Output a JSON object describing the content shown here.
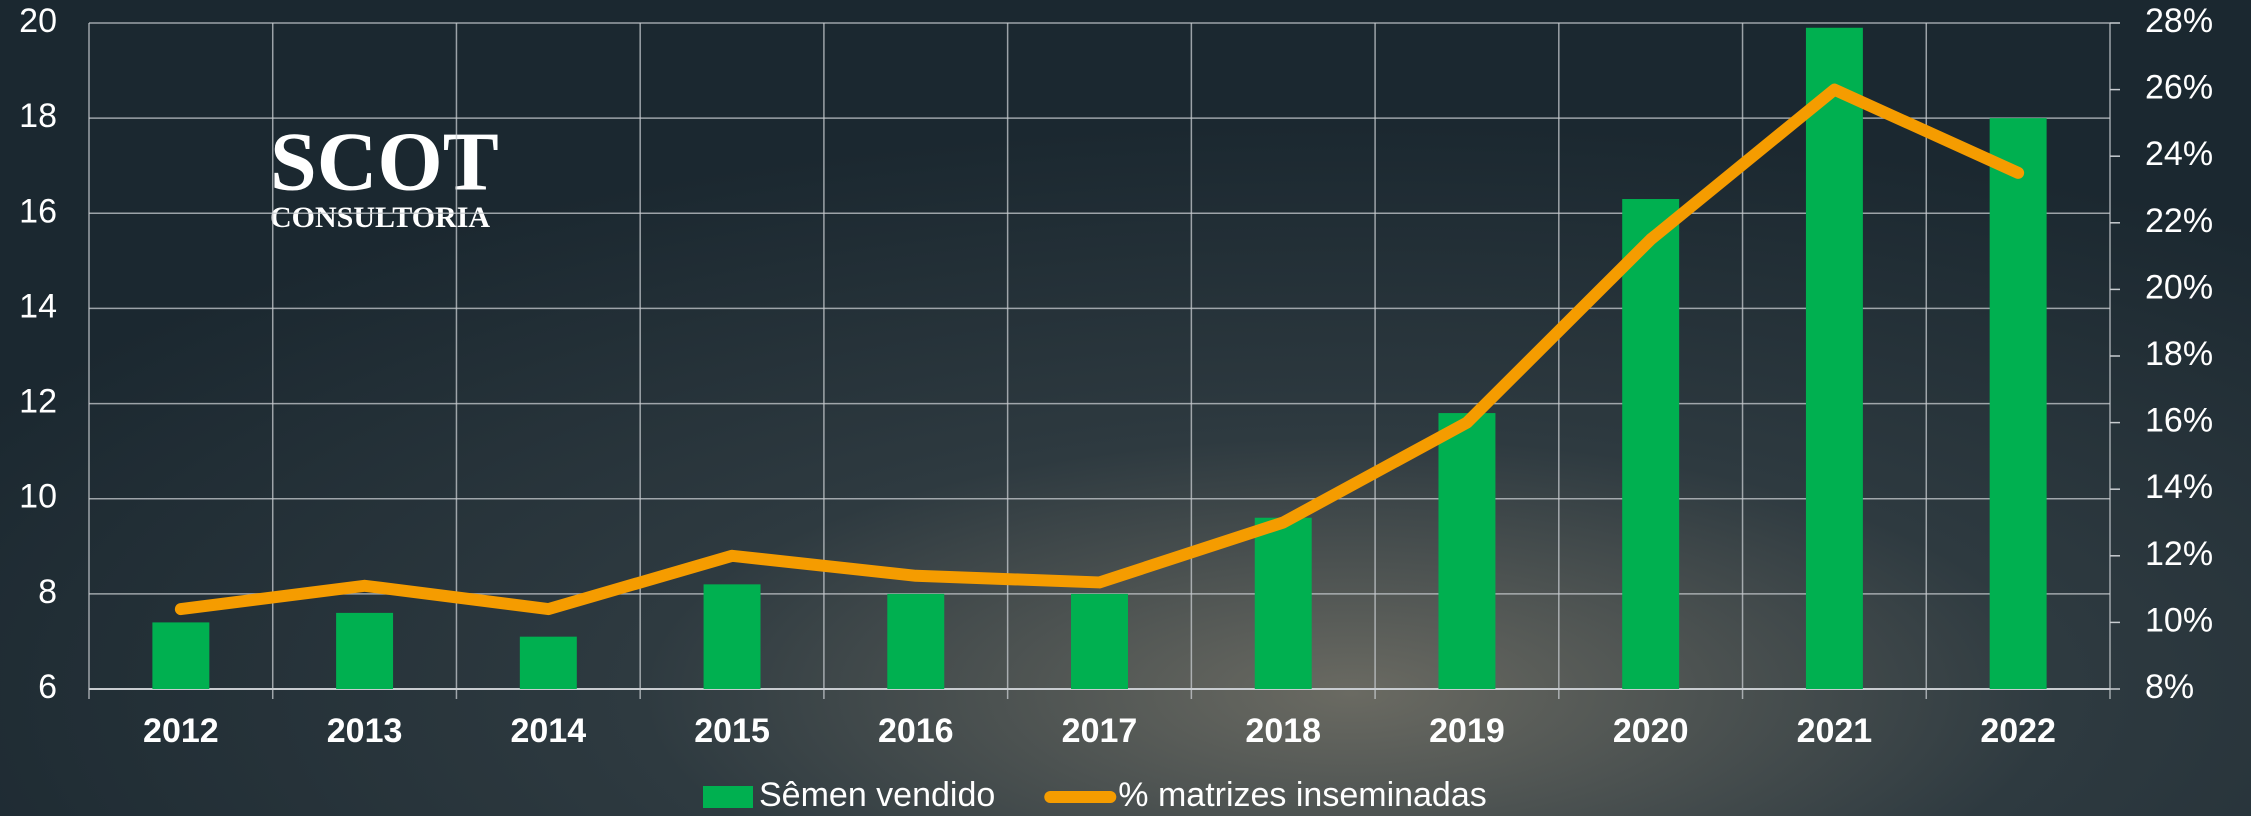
{
  "logo": {
    "title": "SCOT",
    "subtitle": "CONSULTORIA"
  },
  "chart_data": {
    "type": "bar",
    "categories": [
      "2012",
      "2013",
      "2014",
      "2015",
      "2016",
      "2017",
      "2018",
      "2019",
      "2020",
      "2021",
      "2022"
    ],
    "series": [
      {
        "name": "Sêmen vendido",
        "type": "bar",
        "color": "#00b050",
        "values": [
          7.4,
          7.6,
          7.1,
          8.2,
          8.0,
          8.0,
          9.6,
          11.8,
          16.3,
          19.9,
          18.0
        ]
      },
      {
        "name": "% matrizes inseminadas",
        "type": "line",
        "axis": "y2",
        "color": "#f59c00",
        "values": [
          10.4,
          11.1,
          10.4,
          12.0,
          11.4,
          11.2,
          13.0,
          16.0,
          21.5,
          26.0,
          23.5
        ]
      }
    ],
    "ylim": [
      6,
      20
    ],
    "yticks": [
      6,
      8,
      10,
      12,
      14,
      16,
      18,
      20
    ],
    "y2lim": [
      8,
      28
    ],
    "y2ticks": [
      {
        "value": 8,
        "label": "8%"
      },
      {
        "value": 10,
        "label": "10%"
      },
      {
        "value": 12,
        "label": "12%"
      },
      {
        "value": 14,
        "label": "14%"
      },
      {
        "value": 16,
        "label": "16%"
      },
      {
        "value": 18,
        "label": "18%"
      },
      {
        "value": 20,
        "label": "20%"
      },
      {
        "value": 22,
        "label": "22%"
      },
      {
        "value": 24,
        "label": "24%"
      },
      {
        "value": 26,
        "label": "26%"
      },
      {
        "value": 28,
        "label": "28%"
      }
    ],
    "grid": true,
    "legend": "bottom"
  }
}
